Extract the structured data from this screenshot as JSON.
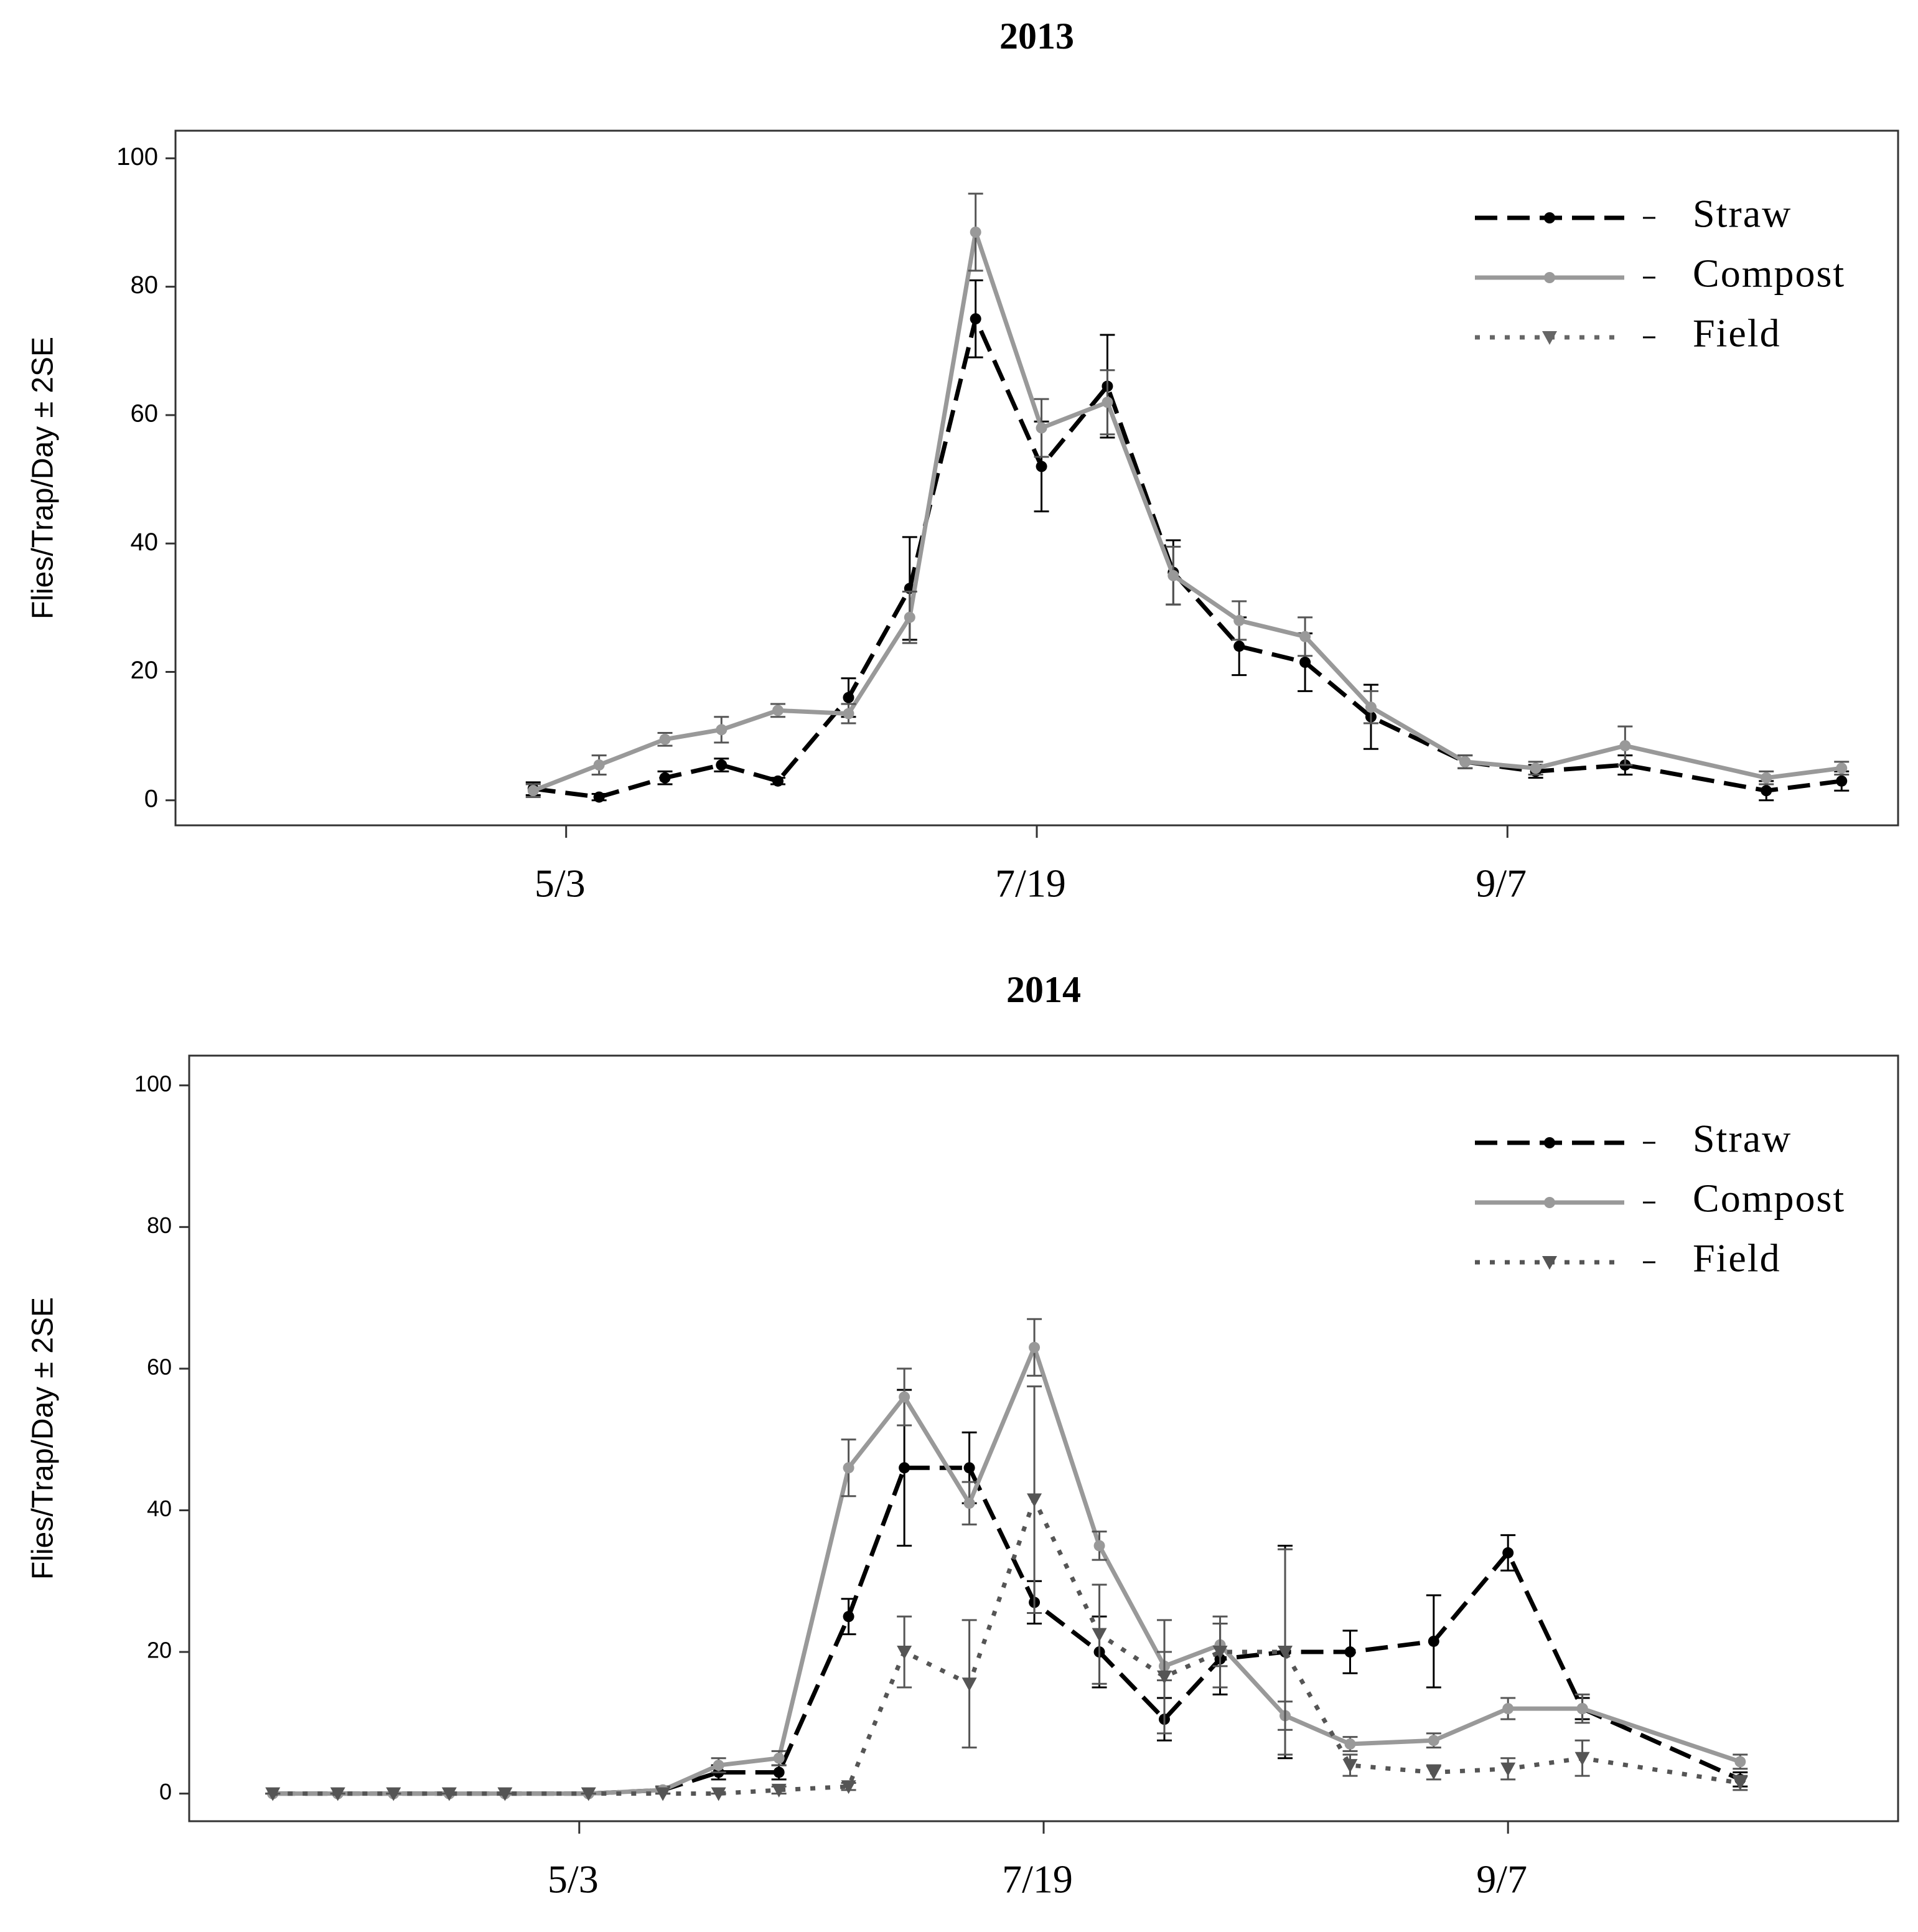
{
  "chart_data": [
    {
      "type": "line",
      "title": "2013",
      "y_label": "Flies/Trap/Day ± 2SE",
      "legend": "upper right",
      "grid": false,
      "x": [
        -0.07,
        0.07,
        0.21,
        0.33,
        0.45,
        0.6,
        0.73,
        0.87,
        1.01,
        1.15,
        1.29,
        1.43,
        1.57,
        1.71,
        1.91,
        2.06,
        2.25,
        2.55,
        2.71
      ],
      "xlim": [
        -0.83,
        2.83
      ],
      "xticks": [
        {
          "value": 0,
          "label": "5/3"
        },
        {
          "value": 1,
          "label": "7/19"
        },
        {
          "value": 2,
          "label": "9/7"
        }
      ],
      "ylim": [
        -3.9,
        104.3
      ],
      "yticks": [
        0,
        20,
        40,
        60,
        80,
        100
      ],
      "series": [
        {
          "name": "Straw",
          "color": "#000000",
          "dash": "dashed",
          "marker": "circle",
          "values": [
            1.8,
            0.5,
            3.5,
            5.5,
            3,
            16,
            33,
            75,
            52,
            64.5,
            35.5,
            24,
            21.5,
            13,
            6,
            4.5,
            5.5,
            1.5,
            3
          ],
          "errors": [
            1,
            0.5,
            1,
            1,
            0.5,
            3,
            8,
            6,
            7,
            8,
            5,
            4.5,
            4.5,
            5,
            1,
            1,
            1.5,
            1.5,
            1.5
          ]
        },
        {
          "name": "Compost",
          "color": "#999999",
          "dash": "solid",
          "marker": "circle",
          "values": [
            1.5,
            5.5,
            9.5,
            11,
            14,
            13.5,
            28.5,
            88.5,
            58,
            62,
            35,
            28,
            25.5,
            14.5,
            6,
            5,
            8.5,
            3.5,
            5
          ],
          "errors": [
            1,
            1.5,
            1,
            2,
            1,
            1.5,
            4,
            6,
            4.5,
            5,
            4.5,
            3,
            3,
            2.5,
            1,
            1,
            3,
            1,
            1
          ]
        },
        {
          "name": "Field",
          "color": "#666666",
          "dash": "dotted",
          "marker": "triangle",
          "values": [
            null,
            null,
            null,
            null,
            null,
            null,
            null,
            null,
            null,
            null,
            null,
            null,
            null,
            null,
            null,
            null,
            null,
            null,
            null
          ],
          "errors": [
            null,
            null,
            null,
            null,
            null,
            null,
            null,
            null,
            null,
            null,
            null,
            null,
            null,
            null,
            null,
            null,
            null,
            null,
            null
          ]
        }
      ]
    },
    {
      "type": "line",
      "title": "2014",
      "y_label": "Flies/Trap/Day ± 2SE",
      "legend": "upper right",
      "grid": false,
      "x": [
        -0.66,
        -0.52,
        -0.4,
        -0.28,
        -0.16,
        0.02,
        0.18,
        0.3,
        0.43,
        0.58,
        0.7,
        0.84,
        0.98,
        1.12,
        1.26,
        1.38,
        1.52,
        1.66,
        1.84,
        2.0,
        2.16,
        2.5
      ],
      "xlim": [
        -0.84,
        2.84
      ],
      "xticks": [
        {
          "value": 0,
          "label": "5/3"
        },
        {
          "value": 1,
          "label": "7/19"
        },
        {
          "value": 2,
          "label": "9/7"
        }
      ],
      "ylim": [
        -3.9,
        104.2
      ],
      "yticks": [
        0,
        20,
        40,
        60,
        80,
        100
      ],
      "series": [
        {
          "name": "Straw",
          "color": "#000000",
          "dash": "dashed",
          "marker": "circle",
          "values": [
            0,
            0,
            0,
            0,
            0,
            0,
            0.5,
            3,
            3,
            25,
            46,
            46,
            27,
            20,
            10.5,
            19,
            20,
            20,
            21.5,
            34,
            12,
            2
          ],
          "errors": [
            0,
            0,
            0,
            0,
            0,
            0,
            0.5,
            1,
            1,
            2.5,
            11,
            5,
            3,
            5,
            3,
            5,
            15,
            3,
            6.5,
            2.5,
            1.5,
            1
          ]
        },
        {
          "name": "Compost",
          "color": "#999999",
          "dash": "solid",
          "marker": "circle",
          "values": [
            0,
            0,
            0,
            0,
            0,
            0,
            0.5,
            4,
            5,
            46,
            56,
            41,
            63,
            35,
            18,
            21,
            11,
            7,
            7.5,
            12,
            12,
            4.5
          ],
          "errors": [
            0,
            0,
            0,
            0,
            0,
            0,
            0.5,
            1,
            1,
            4,
            4,
            3,
            4,
            2,
            2,
            3,
            2,
            1,
            1,
            1.5,
            2,
            1
          ]
        },
        {
          "name": "Field",
          "color": "#555555",
          "dash": "dotted",
          "marker": "triangle",
          "values": [
            0,
            0,
            0,
            0,
            0,
            0,
            0,
            0,
            0.5,
            1,
            20,
            15.5,
            41.5,
            22.5,
            16.5,
            20,
            20,
            4,
            3,
            3.5,
            5,
            1.5
          ],
          "errors": [
            0,
            0,
            0,
            0,
            0,
            0,
            0,
            0,
            0.5,
            0.5,
            5,
            9,
            16,
            7,
            8,
            5,
            14.5,
            1.5,
            1,
            1.5,
            2.5,
            1
          ]
        }
      ]
    }
  ]
}
